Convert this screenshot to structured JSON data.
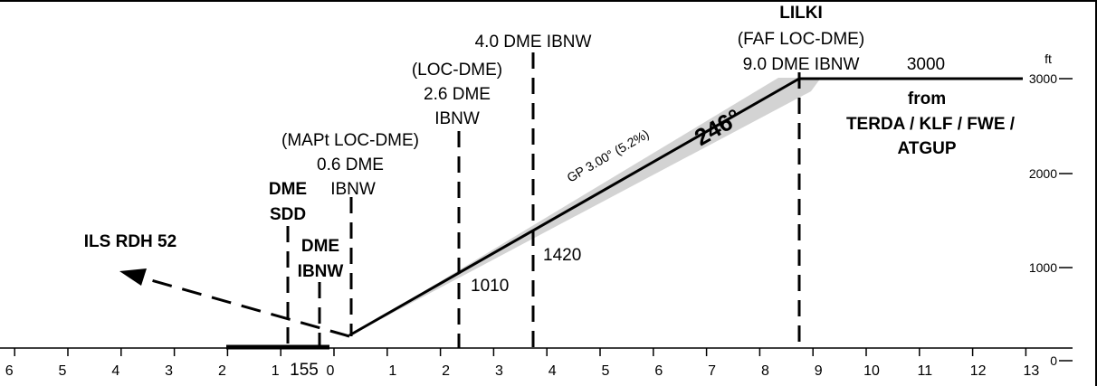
{
  "profile": {
    "fix": {
      "name": "LILKI",
      "role": "(FAF LOC-DME)",
      "dme": "9.0 DME IBNW",
      "altitude": "3000"
    },
    "from_routes": {
      "line1": "from",
      "line2": "TERDA / KLF / FWE /",
      "line3": "ATGUP"
    },
    "dme_4_0": "4.0 DME IBNW",
    "dme_2_6": {
      "line1": "(LOC-DME)",
      "line2": "2.6 DME",
      "line3": "IBNW"
    },
    "mapt": {
      "line1": "(MAPt LOC-DME)",
      "line2": "0.6 DME",
      "line3": "IBNW"
    },
    "dme_sdd": {
      "line1": "DME",
      "line2": "SDD"
    },
    "dme_ibnw": {
      "line1": "DME",
      "line2": "IBNW"
    },
    "rdh_label": "ILS RDH 52",
    "glidepath_label": "GP 3.00° (5.2%)",
    "course_label": "246°",
    "alt_1420": "1420",
    "alt_1010": "1010",
    "threshold_elev": "155"
  },
  "axes": {
    "unit": "ft",
    "altitude_ticks": [
      "3000",
      "2000",
      "1000",
      "0"
    ],
    "distance_ticks": [
      "6",
      "5",
      "4",
      "3",
      "2",
      "1",
      "0",
      "1",
      "2",
      "3",
      "4",
      "5",
      "6",
      "7",
      "8",
      "9",
      "10",
      "11",
      "12",
      "13"
    ]
  },
  "colors": {
    "profile_line": "#000000",
    "glidepath_band": "#d3d3d3"
  }
}
